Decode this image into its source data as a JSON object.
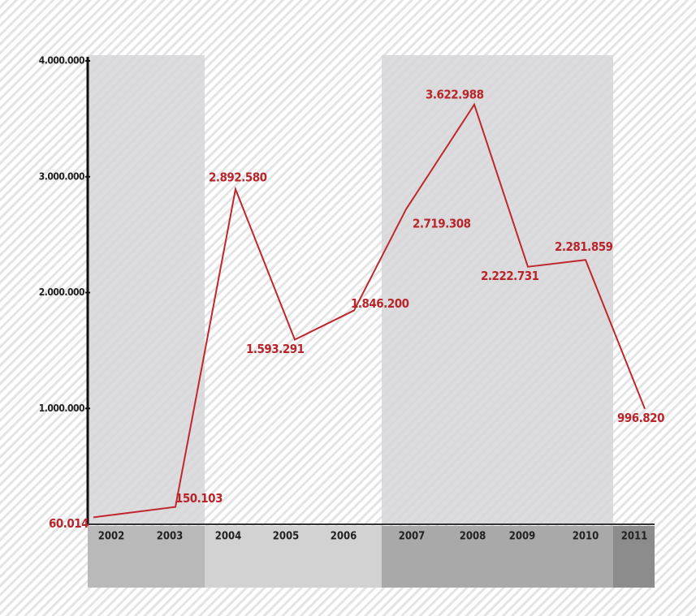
{
  "chart_data": {
    "type": "line",
    "categories": [
      "2002",
      "2003",
      "2004",
      "2005",
      "2006",
      "2007",
      "2008",
      "2009",
      "2010",
      "2011"
    ],
    "values": [
      60014,
      150103,
      2892580,
      1593291,
      1846200,
      2719308,
      3622988,
      2222731,
      2281859,
      996820
    ],
    "value_labels": [
      "60.014",
      "150.103",
      "2.892.580",
      "1.593.291",
      "1.846.200",
      "2.719.308",
      "3.622.988",
      "2.222.731",
      "2.281.859",
      "996.820"
    ],
    "color": "#c0272d",
    "ylim": [
      0,
      4000000
    ],
    "yticks": [
      {
        "value": 1000000,
        "label": "1.000.000"
      },
      {
        "value": 2000000,
        "label": "2.000.000"
      },
      {
        "value": 3000000,
        "label": "3.000.000"
      },
      {
        "value": 4000000,
        "label": "4.000.000"
      }
    ]
  }
}
